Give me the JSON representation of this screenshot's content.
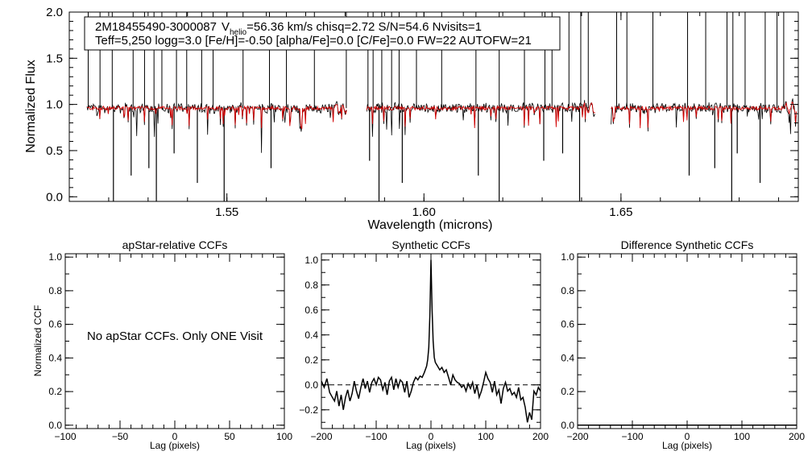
{
  "colors": {
    "observed": "#000000",
    "model": "#d40000",
    "axis": "#000000",
    "background": "#ffffff"
  },
  "info_box": {
    "line1_star": "2M18455490-3000087",
    "line1_v": "V",
    "line1_v_sub": "helio",
    "line1_rest": "=56.36 km/s  chisq=2.72  S/N=54.6  Nvisits=1",
    "line2": "Teff=5,250 logg=3.0 [Fe/H]=-0.50 [alpha/Fe]=0.0 [C/Fe]=0.0 FW=22 AUTOFW=21"
  },
  "note": "No apStar CCFs.  Only ONE Visit",
  "chart_data": [
    {
      "id": "spectrum",
      "type": "line",
      "title": "",
      "xlabel": "Wavelength (microns)",
      "ylabel": "Normalized Flux",
      "xlim": [
        1.51,
        1.695
      ],
      "ylim": [
        -0.05,
        2.0
      ],
      "x_ticks": [
        1.55,
        1.6,
        1.65
      ],
      "x_tick_labels": [
        "1.55",
        "1.60",
        "1.65"
      ],
      "y_ticks": [
        0.0,
        0.5,
        1.0,
        1.5,
        2.0
      ],
      "y_tick_labels": [
        "0.0",
        "0.5",
        "1.0",
        "1.5",
        "2.0"
      ],
      "chips": [
        [
          1.5145,
          1.5805
        ],
        [
          1.5855,
          1.6435
        ],
        [
          1.6475,
          1.6945
        ]
      ],
      "continuum": 0.96,
      "series": [
        {
          "name": "observed",
          "color": "#000000"
        },
        {
          "name": "model",
          "color": "#d40000"
        }
      ],
      "spikes": [
        1.5148,
        1.5178,
        1.5209,
        1.5262,
        1.5291,
        1.5315,
        1.5335,
        1.5372,
        1.5398,
        1.5436,
        1.5465,
        1.5541,
        1.5608,
        1.5651,
        1.5722,
        1.5803,
        1.5858,
        1.5871,
        1.5893,
        1.5918,
        1.5937,
        1.5981,
        1.6045,
        1.6132,
        1.6191,
        1.6255,
        1.6307,
        1.6325,
        1.6368,
        1.6398,
        1.6417,
        1.6489,
        1.6515,
        1.6581,
        1.6669,
        1.6715,
        1.6769,
        1.6784,
        1.6815,
        1.6866,
        1.6896,
        1.6913
      ],
      "dips": [
        1.5212,
        1.5257,
        1.5302,
        1.5321,
        1.5366,
        1.5425,
        1.5493,
        1.5612,
        1.5862,
        1.5886,
        1.5945,
        1.6138,
        1.6191,
        1.6304,
        1.6352,
        1.6395,
        1.6673,
        1.6738,
        1.6781,
        1.6795,
        1.6853
      ]
    },
    {
      "id": "apstar-ccf",
      "type": "line",
      "title": "apStar-relative CCFs",
      "xlabel": "Lag (pixels)",
      "ylabel": "Normalized CCF",
      "xlim": [
        -100,
        100
      ],
      "ylim": [
        -0.02,
        1.02
      ],
      "x_ticks": [
        -100,
        -50,
        0,
        50,
        100
      ],
      "x_tick_labels": [
        "−100",
        "−50",
        "0",
        "50",
        "100"
      ],
      "y_ticks": [
        0.0,
        0.2,
        0.4,
        0.6,
        0.8,
        1.0
      ],
      "y_tick_labels": [
        "0.0",
        "0.2",
        "0.4",
        "0.6",
        "0.8",
        "1.0"
      ],
      "series": []
    },
    {
      "id": "synthetic-ccf",
      "type": "line",
      "title": "Synthetic CCFs",
      "xlabel": "Lag (pixels)",
      "ylabel": "",
      "xlim": [
        -200,
        200
      ],
      "ylim": [
        -0.35,
        1.05
      ],
      "x_ticks": [
        -200,
        -100,
        0,
        100,
        200
      ],
      "x_tick_labels": [
        "−200",
        "−100",
        "0",
        "100",
        "200"
      ],
      "y_ticks": [
        -0.2,
        0.0,
        0.2,
        0.4,
        0.6,
        0.8,
        1.0
      ],
      "y_tick_labels": [
        "−0.2",
        "0.0",
        "0.2",
        "0.4",
        "0.6",
        "0.8",
        "1.0"
      ],
      "reference_line": {
        "y": 0.0,
        "style": "dashed"
      },
      "series": [
        {
          "name": "ccf",
          "color": "#000000",
          "x": [
            -200,
            -195,
            -190,
            -185,
            -180,
            -176,
            -172,
            -168,
            -164,
            -160,
            -156,
            -152,
            -148,
            -144,
            -140,
            -136,
            -132,
            -128,
            -124,
            -120,
            -116,
            -112,
            -108,
            -104,
            -100,
            -96,
            -92,
            -88,
            -84,
            -80,
            -76,
            -72,
            -68,
            -64,
            -60,
            -56,
            -52,
            -48,
            -44,
            -40,
            -36,
            -32,
            -28,
            -24,
            -20,
            -16,
            -12,
            -8,
            -6,
            -4,
            -2,
            0,
            2,
            4,
            6,
            8,
            12,
            16,
            20,
            24,
            28,
            32,
            36,
            40,
            44,
            48,
            52,
            56,
            60,
            64,
            68,
            72,
            76,
            80,
            84,
            88,
            92,
            96,
            100,
            104,
            108,
            112,
            116,
            120,
            124,
            128,
            132,
            136,
            140,
            144,
            148,
            152,
            156,
            160,
            164,
            168,
            172,
            176,
            180,
            184,
            188,
            192,
            196,
            200
          ],
          "y": [
            0.03,
            -0.02,
            0.05,
            -0.06,
            -0.1,
            -0.13,
            -0.05,
            -0.17,
            -0.08,
            -0.2,
            -0.1,
            -0.04,
            -0.13,
            -0.07,
            0.03,
            -0.05,
            -0.11,
            -0.02,
            0.05,
            -0.03,
            0.03,
            -0.06,
            0.02,
            0.05,
            0.0,
            0.06,
            0.04,
            -0.04,
            0.02,
            -0.08,
            0.03,
            0.06,
            -0.04,
            0.05,
            -0.02,
            0.04,
            0.02,
            -0.06,
            0.03,
            -0.1,
            -0.05,
            0.02,
            0.06,
            0.04,
            0.07,
            0.06,
            0.1,
            0.15,
            0.2,
            0.3,
            0.55,
            1.0,
            0.6,
            0.35,
            0.22,
            0.18,
            0.15,
            0.12,
            0.14,
            0.1,
            0.12,
            0.06,
            0.0,
            0.08,
            0.04,
            0.02,
            0.01,
            -0.02,
            0.0,
            -0.05,
            0.01,
            -0.03,
            0.02,
            -0.07,
            0.0,
            -0.1,
            -0.05,
            0.02,
            0.1,
            0.05,
            0.02,
            -0.06,
            0.03,
            -0.08,
            -0.04,
            -0.15,
            -0.03,
            0.02,
            -0.05,
            -0.03,
            -0.08,
            -0.06,
            -0.1,
            -0.02,
            -0.12,
            -0.1,
            -0.18,
            -0.3,
            -0.22,
            -0.28,
            -0.05,
            -0.08,
            -0.02,
            -0.05
          ]
        }
      ]
    },
    {
      "id": "difference-ccf",
      "type": "line",
      "title": "Difference Synthetic CCFs",
      "xlabel": "Lag (pixels)",
      "ylabel": "",
      "xlim": [
        -200,
        200
      ],
      "ylim": [
        -0.02,
        1.02
      ],
      "x_ticks": [
        -200,
        -100,
        0,
        100,
        200
      ],
      "x_tick_labels": [
        "−200",
        "−100",
        "0",
        "100",
        "200"
      ],
      "y_ticks": [
        0.0,
        0.2,
        0.4,
        0.6,
        0.8,
        1.0
      ],
      "y_tick_labels": [
        "0.0",
        "0.2",
        "0.4",
        "0.6",
        "0.8",
        "1.0"
      ],
      "series": [
        {
          "name": "difference",
          "color": "#000000",
          "x": [
            -200,
            200
          ],
          "y": [
            0.0,
            0.0
          ]
        }
      ]
    }
  ]
}
